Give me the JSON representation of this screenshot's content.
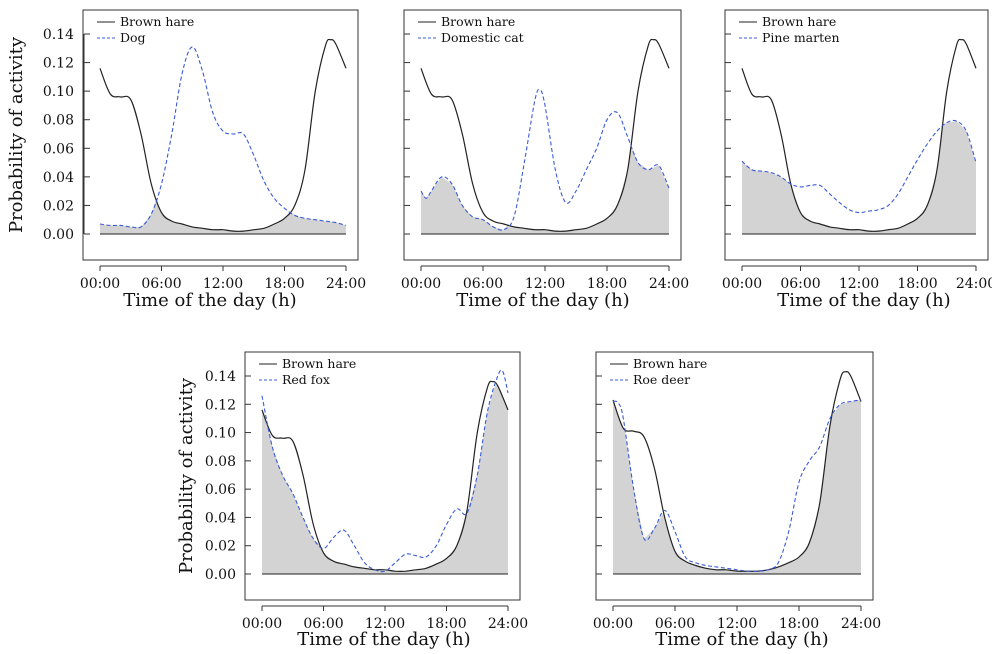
{
  "chart_data": [
    {
      "type": "area",
      "xlabel": "Time of the day (h)",
      "ylabel": "Probability of activity",
      "x_ticks": [
        "00:00",
        "06:00",
        "12:00",
        "18:00",
        "24:00"
      ],
      "y_ticks": [
        "0.00",
        "0.02",
        "0.04",
        "0.06",
        "0.08",
        "0.10",
        "0.12",
        "0.14"
      ],
      "xlim": [
        0,
        24
      ],
      "ylim": [
        0,
        0.14
      ],
      "grid": false,
      "legend": "top-left",
      "series": [
        {
          "name": "Brown hare",
          "color": "#222222",
          "style": "solid",
          "x": [
            0,
            1,
            2,
            3,
            4,
            5,
            6,
            7,
            8,
            9,
            10,
            11,
            12,
            13,
            14,
            15,
            16,
            17,
            18,
            19,
            20,
            21,
            22,
            22.5,
            23,
            24
          ],
          "y": [
            0.116,
            0.098,
            0.096,
            0.094,
            0.07,
            0.035,
            0.015,
            0.009,
            0.007,
            0.005,
            0.004,
            0.003,
            0.003,
            0.002,
            0.002,
            0.003,
            0.004,
            0.007,
            0.011,
            0.02,
            0.045,
            0.1,
            0.132,
            0.136,
            0.133,
            0.116
          ]
        },
        {
          "name": "Dog",
          "color": "#3a5bd9",
          "style": "dashed",
          "x": [
            0,
            1,
            2,
            3,
            4,
            5,
            6,
            7,
            8,
            9,
            10,
            11,
            12,
            13,
            14,
            15,
            16,
            17,
            18,
            19,
            20,
            21,
            22,
            23,
            24
          ],
          "y": [
            0.007,
            0.006,
            0.006,
            0.005,
            0.005,
            0.014,
            0.035,
            0.07,
            0.112,
            0.131,
            0.114,
            0.085,
            0.072,
            0.07,
            0.07,
            0.055,
            0.037,
            0.025,
            0.018,
            0.013,
            0.011,
            0.01,
            0.009,
            0.008,
            0.006
          ]
        }
      ]
    },
    {
      "type": "area",
      "xlabel": "Time of the day (h)",
      "ylabel": "",
      "x_ticks": [
        "00:00",
        "06:00",
        "12:00",
        "18:00",
        "24:00"
      ],
      "xlim": [
        0,
        24
      ],
      "ylim": [
        0,
        0.14
      ],
      "grid": false,
      "legend": "top-left",
      "series": [
        {
          "name": "Brown hare",
          "color": "#222222",
          "style": "solid",
          "x": [
            0,
            1,
            2,
            3,
            4,
            5,
            6,
            7,
            8,
            9,
            10,
            11,
            12,
            13,
            14,
            15,
            16,
            17,
            18,
            19,
            20,
            21,
            22,
            22.5,
            23,
            24
          ],
          "y": [
            0.116,
            0.098,
            0.096,
            0.094,
            0.07,
            0.035,
            0.015,
            0.009,
            0.007,
            0.005,
            0.004,
            0.003,
            0.003,
            0.002,
            0.002,
            0.003,
            0.004,
            0.007,
            0.011,
            0.02,
            0.045,
            0.1,
            0.132,
            0.136,
            0.133,
            0.116
          ]
        },
        {
          "name": "Domestic cat",
          "color": "#3a5bd9",
          "style": "dashed",
          "x": [
            0,
            0.5,
            1,
            2,
            3,
            4,
            5,
            6,
            7,
            8,
            9,
            10,
            11,
            11.5,
            12,
            13,
            14,
            15,
            16,
            17,
            18,
            19,
            20,
            21,
            22,
            23,
            24
          ],
          "y": [
            0.03,
            0.025,
            0.03,
            0.04,
            0.035,
            0.02,
            0.012,
            0.01,
            0.005,
            0.003,
            0.012,
            0.05,
            0.093,
            0.101,
            0.09,
            0.045,
            0.022,
            0.03,
            0.045,
            0.06,
            0.08,
            0.085,
            0.068,
            0.05,
            0.045,
            0.048,
            0.032
          ]
        }
      ]
    },
    {
      "type": "area",
      "xlabel": "Time of the day (h)",
      "ylabel": "",
      "x_ticks": [
        "00:00",
        "06:00",
        "12:00",
        "18:00",
        "24:00"
      ],
      "xlim": [
        0,
        24
      ],
      "ylim": [
        0,
        0.14
      ],
      "grid": false,
      "legend": "top-left",
      "series": [
        {
          "name": "Brown hare",
          "color": "#222222",
          "style": "solid",
          "x": [
            0,
            1,
            2,
            3,
            4,
            5,
            6,
            7,
            8,
            9,
            10,
            11,
            12,
            13,
            14,
            15,
            16,
            17,
            18,
            19,
            20,
            21,
            22,
            22.5,
            23,
            24
          ],
          "y": [
            0.116,
            0.098,
            0.096,
            0.094,
            0.07,
            0.035,
            0.015,
            0.009,
            0.007,
            0.005,
            0.004,
            0.003,
            0.003,
            0.002,
            0.002,
            0.003,
            0.004,
            0.007,
            0.011,
            0.02,
            0.045,
            0.1,
            0.132,
            0.136,
            0.133,
            0.116
          ]
        },
        {
          "name": "Pine marten",
          "color": "#3a5bd9",
          "style": "dashed",
          "x": [
            0,
            1,
            2,
            3,
            4,
            5,
            6,
            7,
            8,
            9,
            10,
            11,
            12,
            13,
            14,
            15,
            16,
            17,
            18,
            19,
            20,
            21,
            22,
            23,
            24
          ],
          "y": [
            0.051,
            0.045,
            0.044,
            0.043,
            0.04,
            0.035,
            0.033,
            0.034,
            0.034,
            0.028,
            0.022,
            0.017,
            0.015,
            0.016,
            0.017,
            0.02,
            0.028,
            0.04,
            0.052,
            0.063,
            0.072,
            0.078,
            0.079,
            0.072,
            0.05
          ]
        }
      ]
    },
    {
      "type": "area",
      "xlabel": "Time of the day (h)",
      "ylabel": "Probability of activity",
      "x_ticks": [
        "00:00",
        "06:00",
        "12:00",
        "18:00",
        "24:00"
      ],
      "y_ticks": [
        "0.00",
        "0.02",
        "0.04",
        "0.06",
        "0.08",
        "0.10",
        "0.12",
        "0.14"
      ],
      "xlim": [
        0,
        24
      ],
      "ylim": [
        0,
        0.14
      ],
      "grid": false,
      "legend": "top-left",
      "series": [
        {
          "name": "Brown hare",
          "color": "#222222",
          "style": "solid",
          "x": [
            0,
            1,
            2,
            3,
            4,
            5,
            6,
            7,
            8,
            9,
            10,
            11,
            12,
            13,
            14,
            15,
            16,
            17,
            18,
            19,
            20,
            21,
            22,
            22.5,
            23,
            24
          ],
          "y": [
            0.116,
            0.098,
            0.096,
            0.094,
            0.07,
            0.035,
            0.015,
            0.009,
            0.007,
            0.005,
            0.004,
            0.003,
            0.003,
            0.002,
            0.002,
            0.003,
            0.004,
            0.007,
            0.011,
            0.02,
            0.045,
            0.1,
            0.132,
            0.136,
            0.133,
            0.116
          ]
        },
        {
          "name": "Red fox",
          "color": "#3a5bd9",
          "style": "dashed",
          "x": [
            0,
            1,
            2,
            3,
            4,
            5,
            6,
            7,
            8,
            9,
            10,
            11,
            12,
            13,
            14,
            15,
            16,
            17,
            18,
            19,
            20,
            21,
            22,
            23,
            23.5,
            24
          ],
          "y": [
            0.126,
            0.09,
            0.07,
            0.057,
            0.04,
            0.025,
            0.018,
            0.026,
            0.031,
            0.02,
            0.008,
            0.003,
            0.002,
            0.008,
            0.014,
            0.013,
            0.012,
            0.02,
            0.035,
            0.046,
            0.043,
            0.07,
            0.115,
            0.14,
            0.143,
            0.128
          ]
        }
      ]
    },
    {
      "type": "area",
      "xlabel": "Time of the day (h)",
      "ylabel": "",
      "x_ticks": [
        "00:00",
        "06:00",
        "12:00",
        "18:00",
        "24:00"
      ],
      "xlim": [
        0,
        24
      ],
      "ylim": [
        0,
        0.14
      ],
      "grid": false,
      "legend": "top-left",
      "series": [
        {
          "name": "Brown hare",
          "color": "#222222",
          "style": "solid",
          "x": [
            0,
            1,
            2,
            3,
            4,
            5,
            6,
            7,
            8,
            9,
            10,
            11,
            12,
            13,
            14,
            15,
            16,
            17,
            18,
            19,
            20,
            21,
            22,
            22.5,
            23,
            24
          ],
          "y": [
            0.123,
            0.103,
            0.101,
            0.097,
            0.075,
            0.04,
            0.016,
            0.009,
            0.006,
            0.004,
            0.003,
            0.003,
            0.002,
            0.002,
            0.002,
            0.003,
            0.005,
            0.008,
            0.012,
            0.022,
            0.05,
            0.105,
            0.138,
            0.143,
            0.14,
            0.122
          ]
        },
        {
          "name": "Roe deer",
          "color": "#3a5bd9",
          "style": "dashed",
          "x": [
            0,
            0.5,
            1,
            2,
            3,
            4,
            5,
            6,
            7,
            8,
            9,
            10,
            11,
            12,
            13,
            14,
            15,
            16,
            17,
            18,
            19,
            20,
            21,
            22,
            23,
            24
          ],
          "y": [
            0.122,
            0.121,
            0.11,
            0.06,
            0.025,
            0.032,
            0.045,
            0.03,
            0.012,
            0.008,
            0.006,
            0.005,
            0.004,
            0.003,
            0.002,
            0.002,
            0.003,
            0.008,
            0.03,
            0.065,
            0.08,
            0.09,
            0.11,
            0.12,
            0.122,
            0.123
          ]
        }
      ]
    }
  ]
}
